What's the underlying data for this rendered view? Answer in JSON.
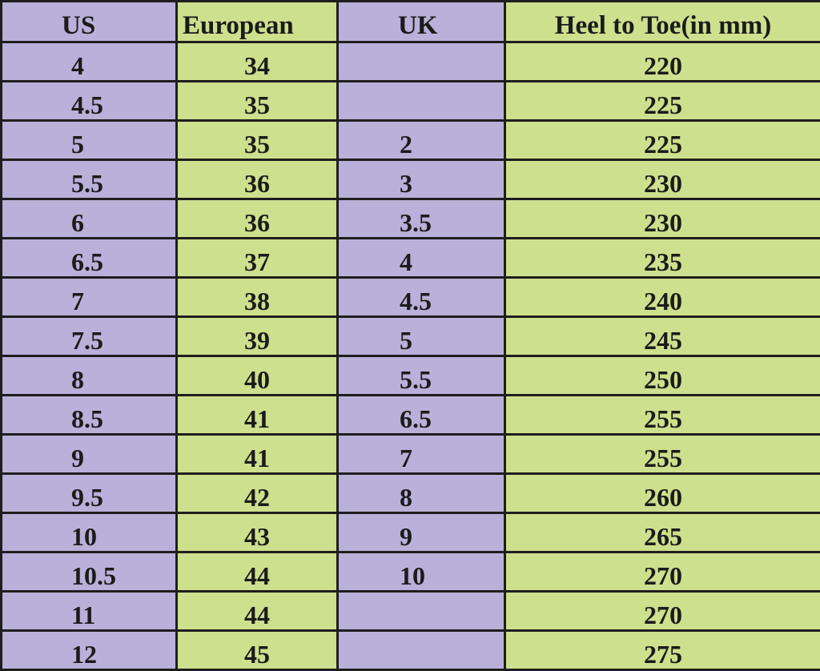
{
  "headers": [
    "US",
    "European",
    "UK",
    "Heel to Toe(in mm)"
  ],
  "rows": [
    [
      "4",
      "34",
      "",
      "220"
    ],
    [
      "4.5",
      "35",
      "",
      "225"
    ],
    [
      "5",
      "35",
      "2",
      "225"
    ],
    [
      "5.5",
      "36",
      "3",
      "230"
    ],
    [
      "6",
      "36",
      "3.5",
      "230"
    ],
    [
      "6.5",
      "37",
      "4",
      "235"
    ],
    [
      "7",
      "38",
      "4.5",
      "240"
    ],
    [
      "7.5",
      "39",
      "5",
      "245"
    ],
    [
      "8",
      "40",
      "5.5",
      "250"
    ],
    [
      "8.5",
      "41",
      "6.5",
      "255"
    ],
    [
      "9",
      "41",
      "7",
      "255"
    ],
    [
      "9.5",
      "42",
      "8",
      "260"
    ],
    [
      "10",
      "43",
      "9",
      "265"
    ],
    [
      "10.5",
      "44",
      "10",
      "270"
    ],
    [
      "11",
      "44",
      "",
      "270"
    ],
    [
      "12",
      "45",
      "",
      "275"
    ]
  ],
  "colors": {
    "us_uk_columns": "#b9b1d9",
    "eu_heel_columns": "#cde08d",
    "border": "#1e1e1e"
  }
}
